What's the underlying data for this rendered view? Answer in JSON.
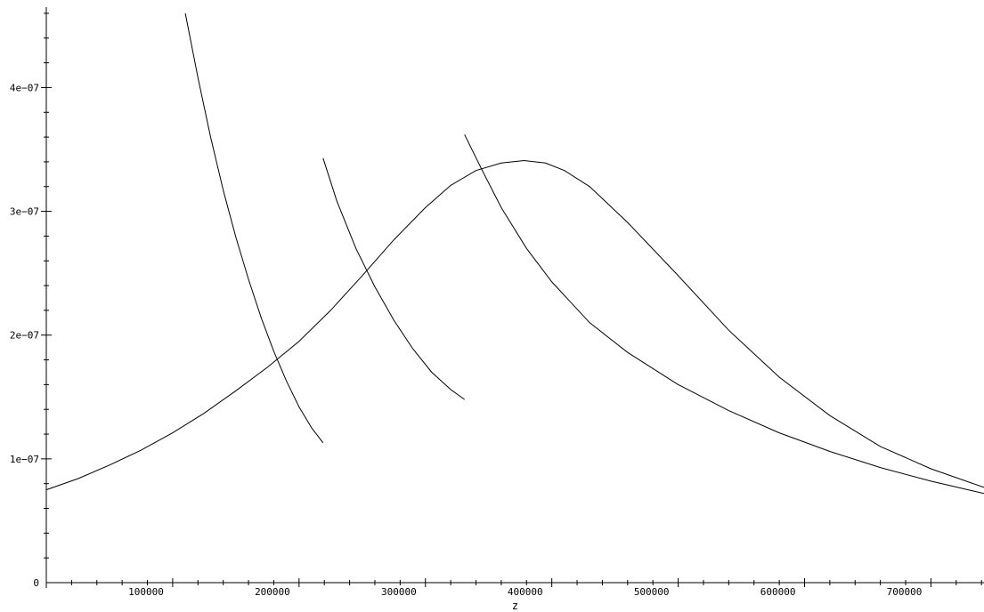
{
  "chart_data": {
    "type": "line",
    "title": "",
    "xlabel": "z",
    "ylabel": "",
    "xlim": [
      0,
      742000
    ],
    "ylim": [
      0,
      4.65e-07
    ],
    "grid": false,
    "x_ticks": [
      {
        "value": 100000,
        "label": "100000"
      },
      {
        "value": 200000,
        "label": "200000"
      },
      {
        "value": 300000,
        "label": "300000"
      },
      {
        "value": 400000,
        "label": "400000"
      },
      {
        "value": 500000,
        "label": "500000"
      },
      {
        "value": 600000,
        "label": "600000"
      },
      {
        "value": 700000,
        "label": "700000"
      }
    ],
    "x_minor_step": 20000,
    "y_ticks": [
      {
        "value": 0,
        "label": "0"
      },
      {
        "value": 1e-07,
        "label": "1e−07"
      },
      {
        "value": 2e-07,
        "label": "2e−07"
      },
      {
        "value": 3e-07,
        "label": "3e−07"
      },
      {
        "value": 4e-07,
        "label": "4e−07"
      }
    ],
    "y_minor_step": 2e-08,
    "series": [
      {
        "x": [
          0,
          25000,
          50000,
          75000,
          100000,
          125000,
          150000,
          175000,
          200000,
          225000,
          250000,
          275000,
          300000,
          320000,
          340000,
          360000,
          378000,
          395000,
          410000,
          430000,
          460000,
          500000,
          540000,
          580000,
          620000,
          660000,
          700000,
          742000
        ],
        "y": [
          7.5e-08,
          8.4e-08,
          9.5e-08,
          1.07e-07,
          1.21e-07,
          1.37e-07,
          1.55e-07,
          1.74e-07,
          1.95e-07,
          2.2e-07,
          2.48e-07,
          2.77e-07,
          3.03e-07,
          3.21e-07,
          3.33e-07,
          3.39e-07,
          3.41e-07,
          3.39e-07,
          3.33e-07,
          3.2e-07,
          2.91e-07,
          2.48e-07,
          2.04e-07,
          1.66e-07,
          1.35e-07,
          1.1e-07,
          9.2e-08,
          7.7e-08
        ]
      },
      {
        "x": [
          110000,
          120000,
          130000,
          140000,
          150000,
          160000,
          170000,
          180000,
          190000,
          200000,
          210000,
          219000
        ],
        "y": [
          4.6e-07,
          4.08e-07,
          3.6e-07,
          3.17e-07,
          2.79e-07,
          2.45e-07,
          2.14e-07,
          1.87e-07,
          1.63e-07,
          1.42e-07,
          1.25e-07,
          1.13e-07
        ]
      },
      {
        "x": [
          219000,
          230000,
          245000,
          260000,
          275000,
          290000,
          305000,
          320000,
          331000
        ],
        "y": [
          3.43e-07,
          3.08e-07,
          2.7e-07,
          2.39e-07,
          2.12e-07,
          1.89e-07,
          1.7e-07,
          1.56e-07,
          1.48e-07
        ]
      },
      {
        "x": [
          331000,
          345000,
          360000,
          380000,
          400000,
          430000,
          460000,
          500000,
          540000,
          580000,
          620000,
          660000,
          700000,
          742000
        ],
        "y": [
          3.62e-07,
          3.33e-07,
          3.03e-07,
          2.7e-07,
          2.43e-07,
          2.1e-07,
          1.86e-07,
          1.6e-07,
          1.39e-07,
          1.21e-07,
          1.06e-07,
          9.3e-08,
          8.2e-08,
          7.2e-08
        ]
      }
    ]
  }
}
